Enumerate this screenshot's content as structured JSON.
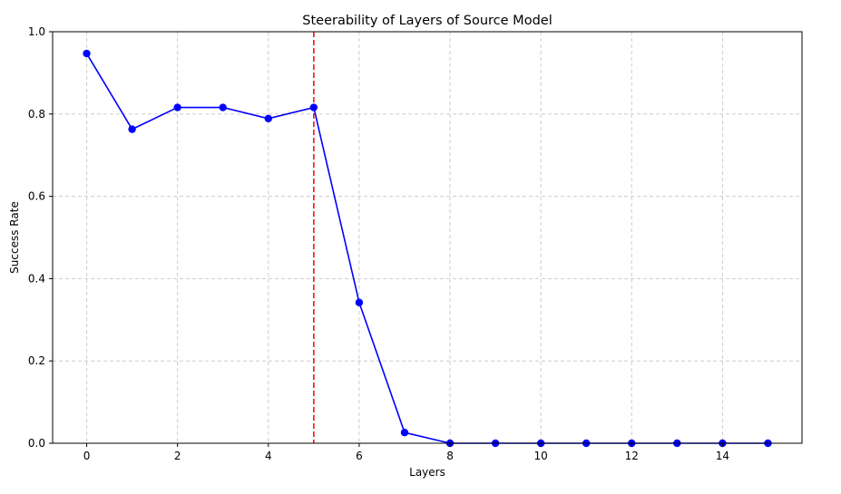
{
  "chart_data": {
    "type": "line",
    "title": "Steerability of Layers of Source Model",
    "xlabel": "Layers",
    "ylabel": "Success Rate",
    "xlim": [
      -0.75,
      15.75
    ],
    "ylim": [
      0,
      1
    ],
    "xticks": [
      0,
      2,
      4,
      6,
      8,
      10,
      12,
      14
    ],
    "xtick_labels": [
      "0",
      "2",
      "4",
      "6",
      "8",
      "10",
      "12",
      "14"
    ],
    "yticks": [
      0,
      0.2,
      0.4,
      0.6,
      0.8,
      1.0
    ],
    "ytick_labels": [
      "0.0",
      "0.2",
      "0.4",
      "0.6",
      "0.8",
      "1.0"
    ],
    "grid": true,
    "series": [
      {
        "color": "#0000ff",
        "marker": "circle",
        "x": [
          0,
          1,
          2,
          3,
          4,
          5,
          6,
          7,
          8,
          9,
          10,
          11,
          12,
          13,
          14,
          15
        ],
        "y": [
          0.947,
          0.763,
          0.816,
          0.816,
          0.789,
          0.816,
          0.342,
          0.026,
          0,
          0,
          0,
          0,
          0,
          0,
          0,
          0
        ]
      }
    ],
    "vlines": [
      {
        "x": 5,
        "color": "#ff0000",
        "style": "dashed"
      }
    ],
    "grid_color": "#cccccc"
  }
}
